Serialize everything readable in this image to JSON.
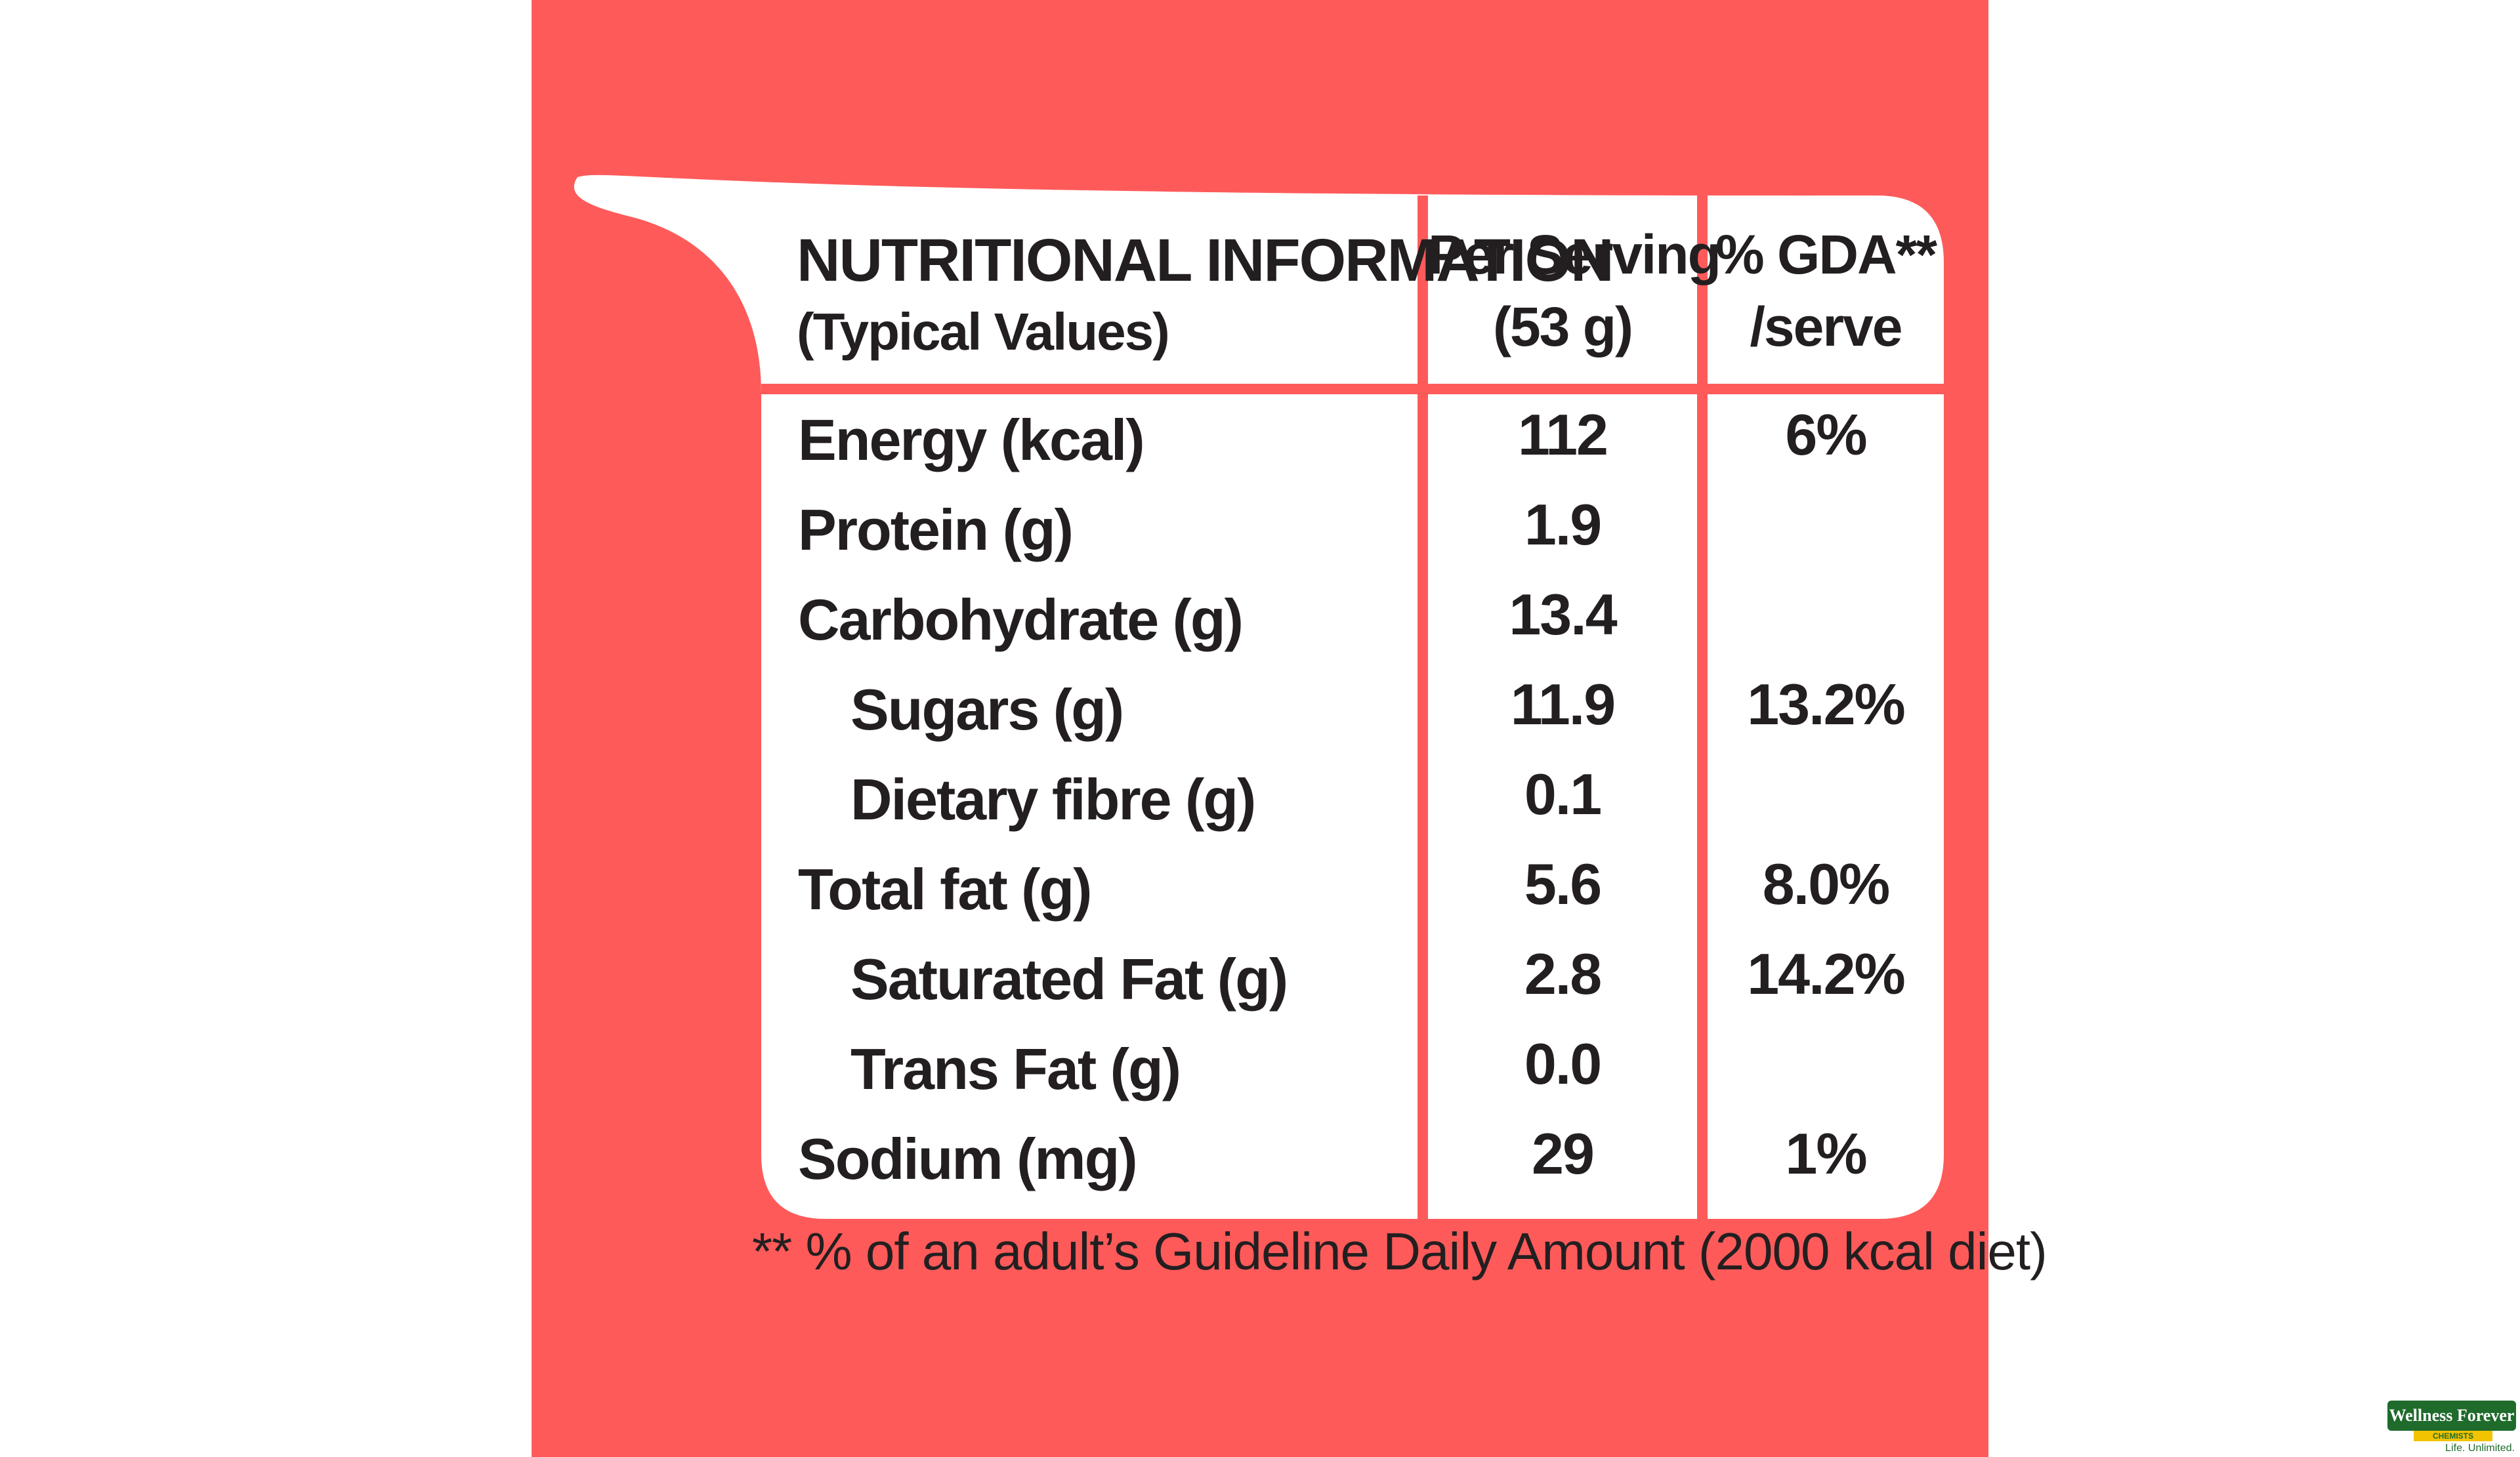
{
  "header": {
    "title_line1": "NUTRITIONAL INFORMATION",
    "title_line2": "(Typical Values)",
    "col1_line1": "Per Serving",
    "col1_line2": "(53 g)",
    "col2_line1": "% GDA**",
    "col2_line2": "/serve"
  },
  "rows": [
    {
      "label": "Energy (kcal)",
      "value": "112",
      "gda": "6%"
    },
    {
      "label": "Protein (g)",
      "value": "1.9",
      "gda": ""
    },
    {
      "label": "Carbohydrate (g)",
      "value": "13.4",
      "gda": ""
    },
    {
      "label": "Sugars (g)",
      "value": "11.9",
      "gda": "13.2%"
    },
    {
      "label": "Dietary fibre (g)",
      "value": "0.1",
      "gda": ""
    },
    {
      "label": "Total fat (g)",
      "value": "5.6",
      "gda": "8.0%"
    },
    {
      "label": "Saturated Fat (g)",
      "value": "2.8",
      "gda": "14.2%"
    },
    {
      "label": "Trans Fat (g)",
      "value": "0.0",
      "gda": ""
    },
    {
      "label": "Sodium (mg)",
      "value": "29",
      "gda": "1%"
    }
  ],
  "footnote": "** % of an adult’s Guideline Daily Amount (2000 kcal diet)",
  "logo": {
    "brand": "Wellness Forever",
    "sub": "CHEMISTS",
    "tagline": "Life. Unlimited."
  },
  "colors": {
    "background": "#ff5a5a",
    "card": "#ffffff",
    "text": "#231f20",
    "logo_green": "#1f6b2c"
  }
}
